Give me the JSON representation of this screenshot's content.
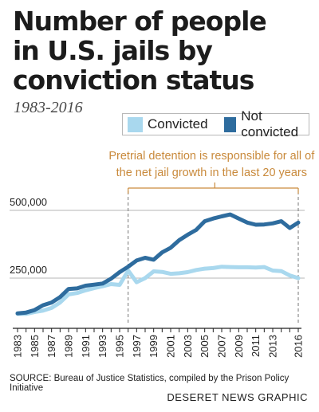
{
  "chart_data": {
    "type": "line",
    "title": "Number of people in U.S. jails by conviction status",
    "subtitle": "1983-2016",
    "x": [
      1983,
      1984,
      1985,
      1986,
      1987,
      1988,
      1989,
      1990,
      1991,
      1992,
      1993,
      1994,
      1995,
      1996,
      1997,
      1998,
      1999,
      2000,
      2001,
      2002,
      2003,
      2004,
      2005,
      2006,
      2007,
      2008,
      2009,
      2010,
      2011,
      2012,
      2013,
      2014,
      2015,
      2016
    ],
    "series": [
      {
        "name": "Convicted",
        "color": "#a9d8ee",
        "values": [
          118000,
          118000,
          125000,
          130000,
          140000,
          160000,
          190000,
          195000,
          205000,
          213000,
          220000,
          228000,
          225000,
          278000,
          235000,
          250000,
          275000,
          273000,
          266000,
          268000,
          272000,
          280000,
          285000,
          287000,
          292000,
          291000,
          290000,
          290000,
          289000,
          291000,
          278000,
          276000,
          260000,
          250000
        ]
      },
      {
        "name": "Not convicted",
        "color": "#2e6c9e",
        "values": [
          120000,
          123000,
          132000,
          150000,
          160000,
          180000,
          210000,
          212000,
          222000,
          226000,
          230000,
          248000,
          272000,
          292000,
          315000,
          325000,
          318000,
          345000,
          362000,
          390000,
          410000,
          428000,
          460000,
          470000,
          478000,
          485000,
          470000,
          455000,
          447000,
          448000,
          452000,
          460000,
          435000,
          455000
        ]
      }
    ],
    "xticks": [
      "1983",
      "1985",
      "1987",
      "1989",
      "1991",
      "1993",
      "1995",
      "1997",
      "1999",
      "2001",
      "2003",
      "2005",
      "2007",
      "2009",
      "2011",
      "2013",
      "2016"
    ],
    "yticks": [
      {
        "value": 250000,
        "label": "250,000"
      },
      {
        "value": 500000,
        "label": "500,000"
      }
    ],
    "ylim": [
      100000,
      560000
    ],
    "grid": "horizontal",
    "legend": "top-right",
    "annotation": {
      "lines": [
        "Pretrial detention is responsible for all of",
        "the net jail growth in the last 20 years"
      ],
      "x_start": 1996,
      "x_end": 2016,
      "color": "#c98a3c"
    }
  },
  "source": "SOURCE: Bureau of Justice Statistics, compiled by the Prison Policy Initiative",
  "credit": "DESERET NEWS GRAPHIC",
  "title_lines": [
    "Number of people",
    "in U.S. jails by",
    "conviction status"
  ]
}
